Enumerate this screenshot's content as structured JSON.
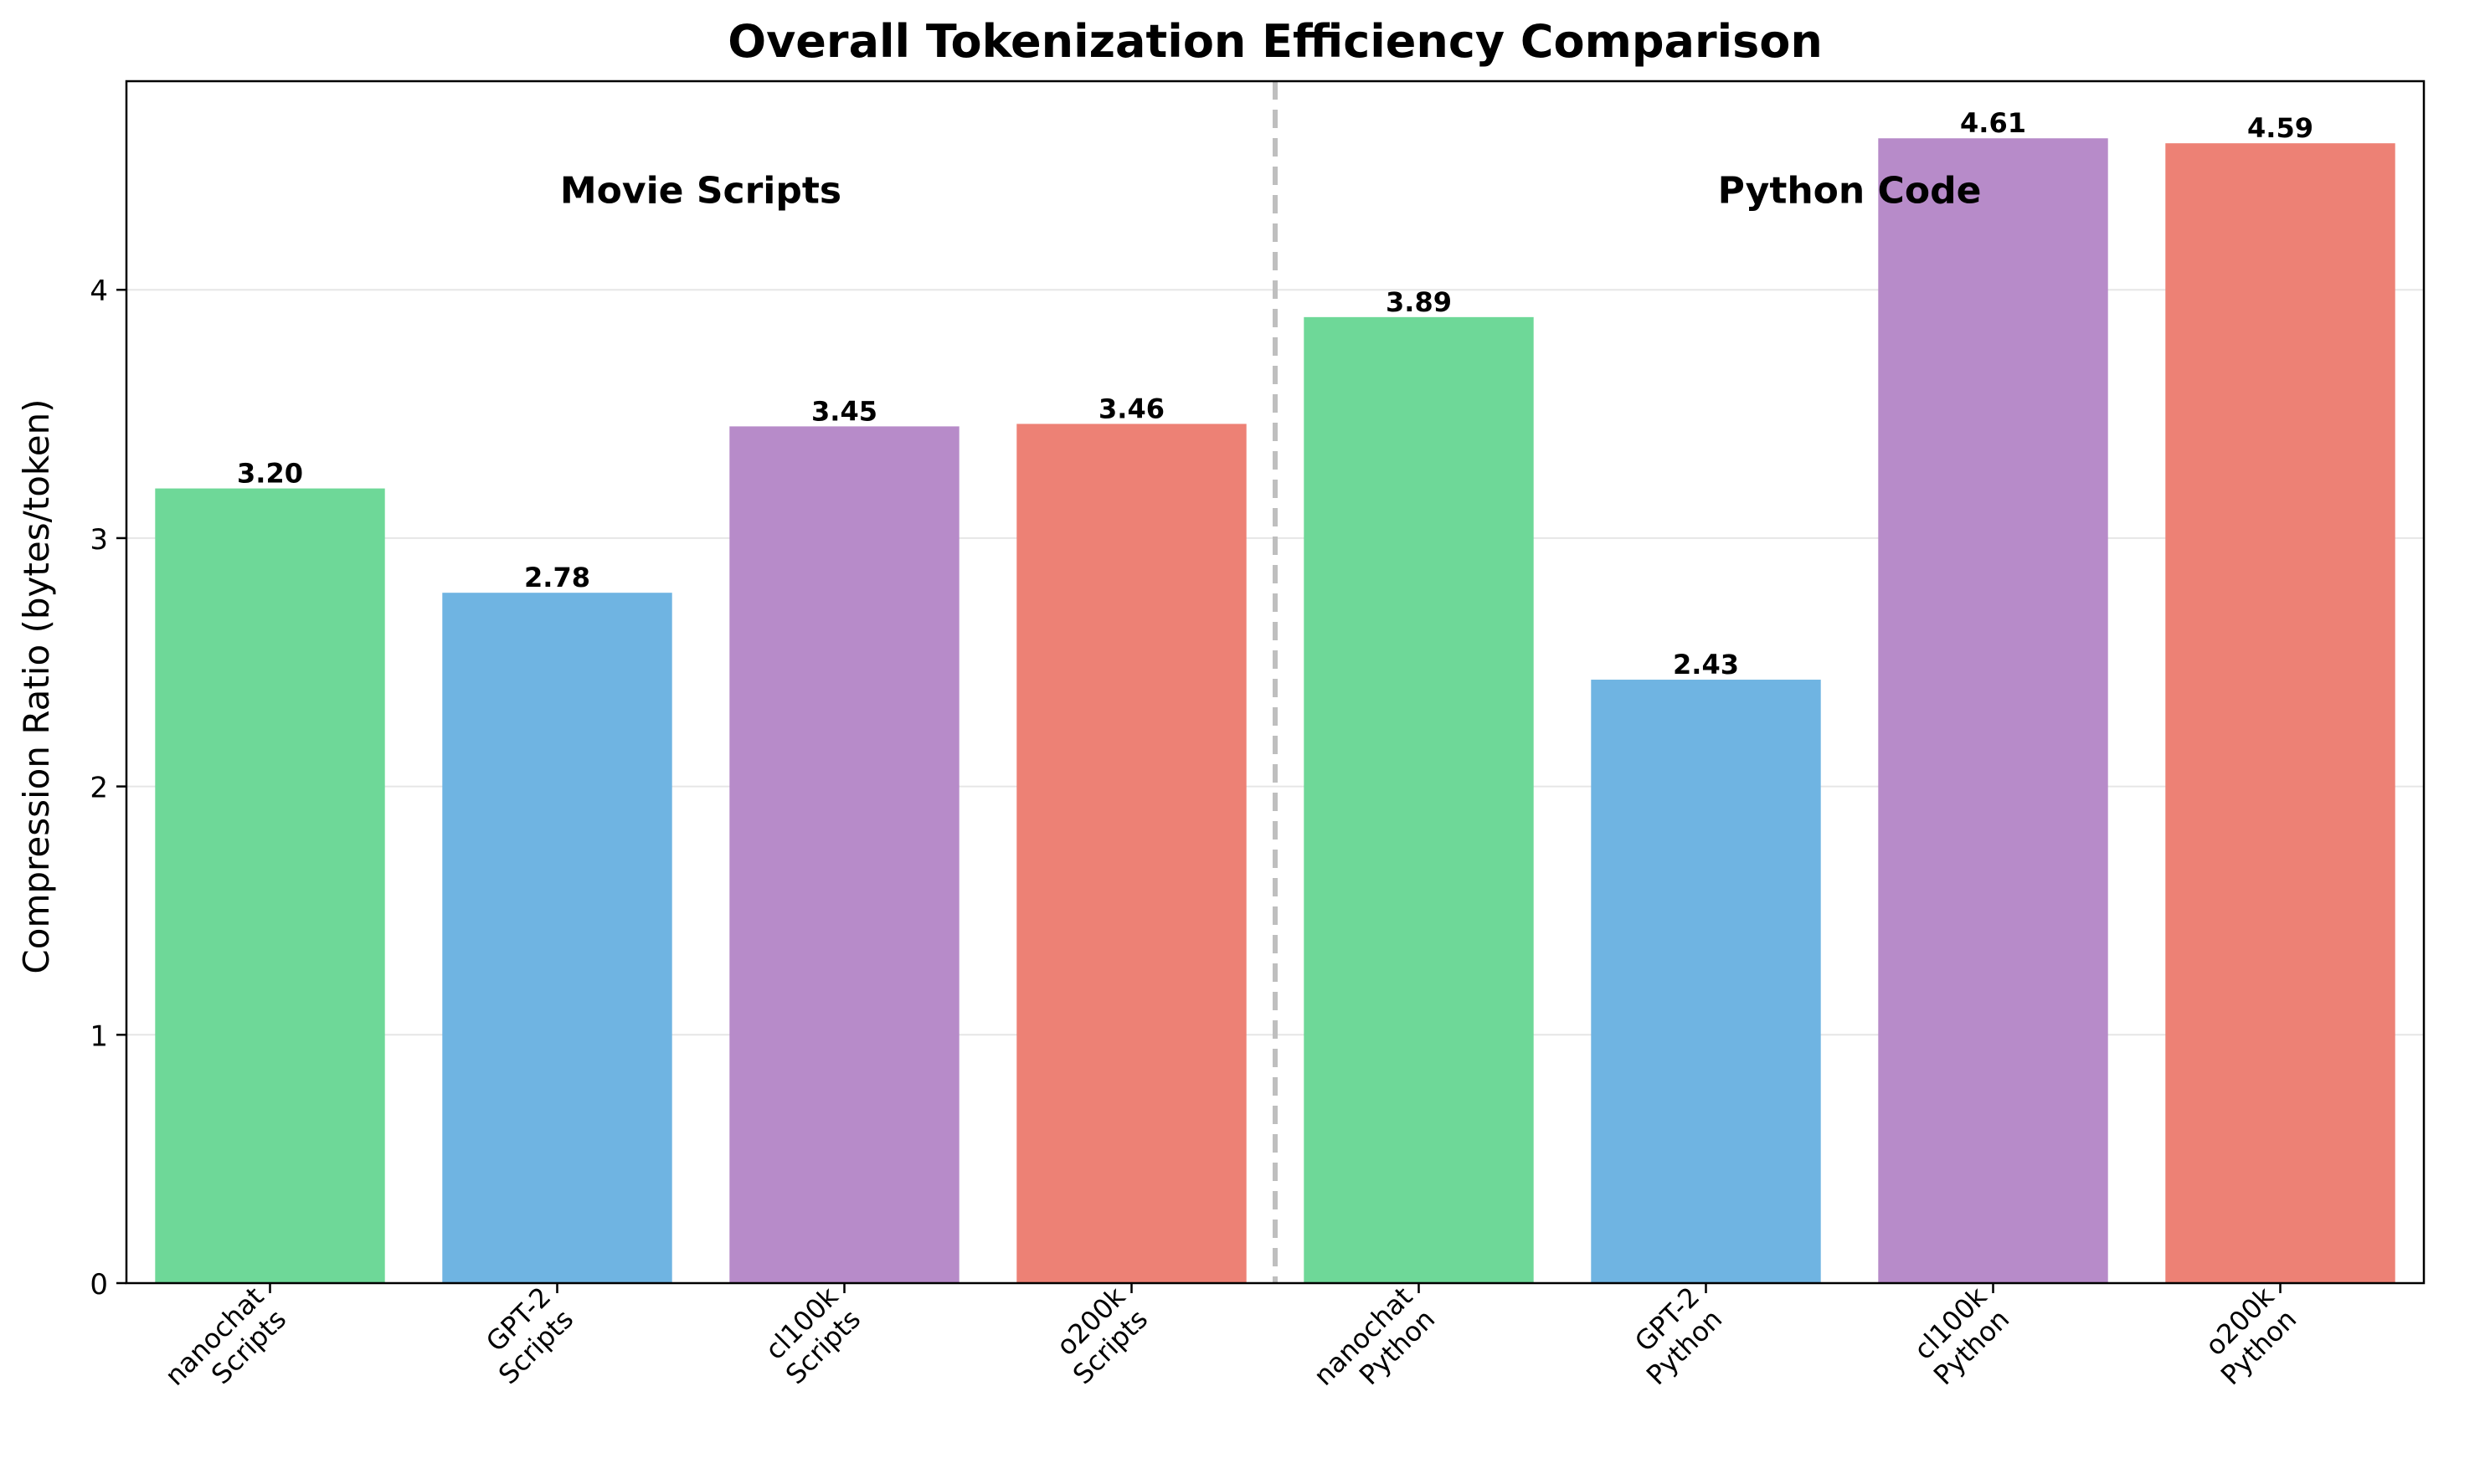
{
  "chart_data": {
    "type": "bar",
    "title": "Overall Tokenization Efficiency Comparison",
    "xlabel": "",
    "ylabel": "Compression Ratio (bytes/token)",
    "ylim": [
      0,
      4.84
    ],
    "yticks": [
      0,
      1,
      2,
      3,
      4
    ],
    "grid": "y",
    "categories": [
      [
        "nanochat",
        "Scripts"
      ],
      [
        "GPT-2",
        "Scripts"
      ],
      [
        "cl100k",
        "Scripts"
      ],
      [
        "o200k",
        "Scripts"
      ],
      [
        "nanochat",
        "Python"
      ],
      [
        "GPT-2",
        "Python"
      ],
      [
        "cl100k",
        "Python"
      ],
      [
        "o200k",
        "Python"
      ]
    ],
    "values": [
      3.2,
      2.78,
      3.45,
      3.46,
      3.89,
      2.43,
      4.61,
      4.59
    ],
    "value_labels": [
      "3.20",
      "2.78",
      "3.45",
      "3.46",
      "3.89",
      "2.43",
      "4.61",
      "4.59"
    ],
    "bar_colors": [
      "#6ed898",
      "#6fb4e2",
      "#b78bc9",
      "#ed8175",
      "#6ed898",
      "#6fb4e2",
      "#b78bc9",
      "#ed8175"
    ],
    "groups": [
      {
        "label": "Movie Scripts",
        "from": 0,
        "to": 3
      },
      {
        "label": "Python Code",
        "from": 4,
        "to": 7
      }
    ],
    "separator_color": "#bfbfbf"
  }
}
